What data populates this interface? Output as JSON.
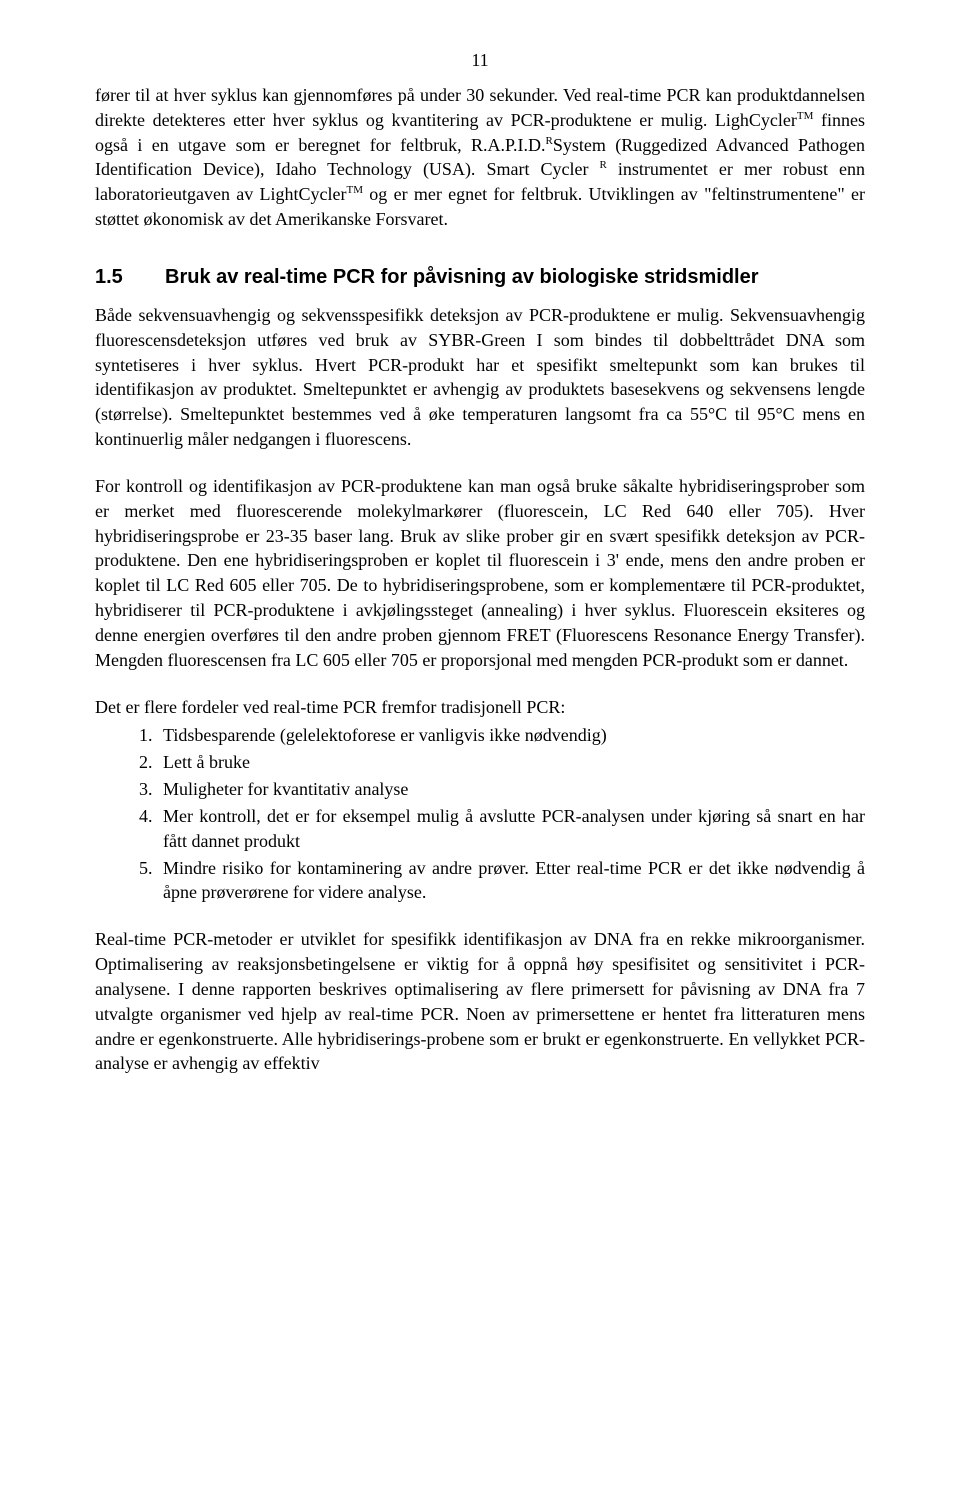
{
  "page_number": "11",
  "para1": "fører til at hver syklus kan gjennomføres på under 30 sekunder. Ved real-time PCR kan produktdannelsen direkte detekteres etter hver syklus og kvantitering av PCR-produktene er mulig. LighCycler",
  "para1_sup1": "TM",
  "para1_b": " finnes også i en utgave som er beregnet for feltbruk, R.A.P.I.D.",
  "para1_sup2": "R",
  "para1_c": "System (Ruggedized Advanced Pathogen Identification Device), Idaho Technology (USA). Smart Cycler ",
  "para1_sup3": "R",
  "para1_d": " instrumentet er mer robust enn laboratorieutgaven av LightCycler",
  "para1_sup4": "TM",
  "para1_e": " og er mer egnet for feltbruk. Utviklingen av \"feltinstrumentene\" er støttet økonomisk av det Amerikanske Forsvaret.",
  "subheading_num": "1.5",
  "subheading_text": "Bruk av real-time PCR for påvisning av biologiske stridsmidler",
  "para2": "Både sekvensuavhengig og sekvensspesifikk deteksjon av PCR-produktene er mulig. Sekvensuavhengig fluorescensdeteksjon utføres ved bruk av SYBR-Green I som bindes til dobbelttrådet DNA som syntetiseres i hver syklus. Hvert PCR-produkt har et spesifikt smeltepunkt som kan brukes til identifikasjon av produktet. Smeltepunktet er avhengig av produktets basesekvens og sekvensens lengde (størrelse). Smeltepunktet bestemmes ved å øke temperaturen langsomt fra ca 55°C til 95°C mens en kontinuerlig måler nedgangen i fluorescens.",
  "para3": "For kontroll og identifikasjon av PCR-produktene kan man også bruke såkalte hybridiseringsprober som er merket med fluorescerende molekylmarkører (fluorescein, LC Red 640 eller 705). Hver hybridiseringsprobe er 23-35 baser lang. Bruk av slike prober gir en svært spesifikk deteksjon av PCR-produktene. Den ene hybridiseringsproben er koplet til fluorescein i 3' ende, mens den andre proben er koplet til LC Red 605 eller 705. De to hybridiseringsprobene, som er komplementære til PCR-produktet, hybridiserer til PCR-produktene i avkjølingssteget (annealing) i hver syklus. Fluorescein eksiteres og denne energien overføres til den andre proben gjennom FRET (Fluorescens Resonance Energy Transfer). Mengden fluorescensen fra LC 605 eller 705 er proporsjonal med mengden PCR-produkt som er dannet.",
  "list_intro": "Det er flere fordeler ved real-time PCR fremfor tradisjonell PCR:",
  "list": [
    "Tidsbesparende (gelelektoforese er vanligvis ikke nødvendig)",
    "Lett å bruke",
    "Muligheter for kvantitativ analyse",
    "Mer kontroll, det er for eksempel mulig å avslutte PCR-analysen under kjøring så snart en har fått dannet produkt",
    "Mindre risiko for kontaminering av andre prøver. Etter real-time PCR er det ikke nødvendig å åpne prøverørene for videre analyse."
  ],
  "para4": "Real-time PCR-metoder er utviklet for spesifikk identifikasjon av DNA fra en rekke mikroorganismer. Optimalisering av reaksjonsbetingelsene er viktig for å oppnå høy spesifisitet og sensitivitet i PCR-analysene. I denne rapporten beskrives optimalisering av flere primersett for påvisning av DNA fra 7 utvalgte organismer ved hjelp av real-time PCR. Noen av primersettene er hentet fra litteraturen mens andre er egenkonstruerte. Alle hybridiserings-probene som er brukt er egenkonstruerte. En vellykket PCR-analyse er avhengig av effektiv"
}
